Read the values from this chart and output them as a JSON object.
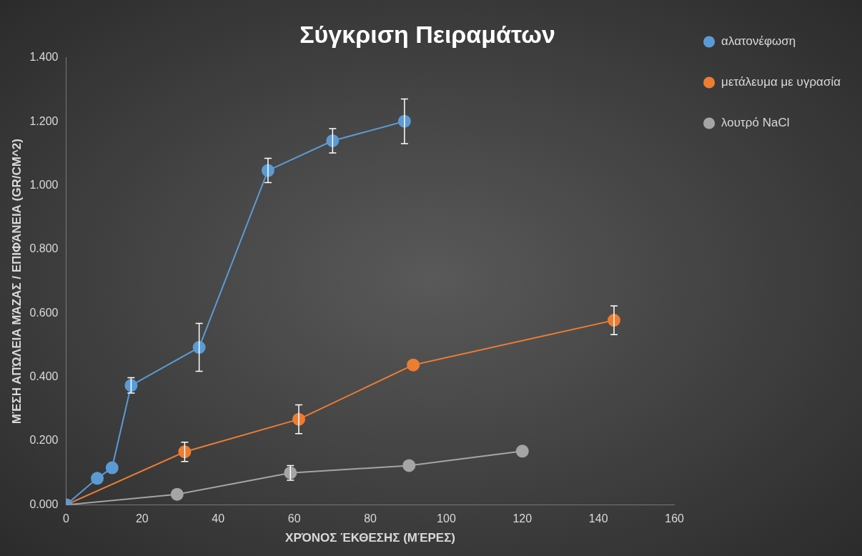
{
  "chart_data": {
    "type": "line",
    "title": "Σύγκριση Πειραμάτων",
    "xlabel": "ΧΡΌΝΟΣ ΈΚΘΕΣΗΣ (ΜΈΡΕΣ)",
    "ylabel": "ΜΈΣΗ ΑΠΏΛΕΙΑ ΜΆΖΑΣ / ΕΠΙΦΆΝΕΙΑ (GR/CM^2)",
    "xlim": [
      0,
      160
    ],
    "xticks": [
      0,
      20,
      40,
      60,
      80,
      100,
      120,
      140,
      160
    ],
    "ylim": [
      0,
      1.4
    ],
    "yticks": [
      {
        "value": 0,
        "label": "0.000"
      },
      {
        "value": 0.2,
        "label": "0.200"
      },
      {
        "value": 0.4,
        "label": "0.400"
      },
      {
        "value": 0.6,
        "label": "0.600"
      },
      {
        "value": 0.8,
        "label": "0.800"
      },
      {
        "value": 1,
        "label": "1.000"
      },
      {
        "value": 1.2,
        "label": "1.200"
      },
      {
        "value": 1.4,
        "label": "1.400"
      }
    ],
    "grid": false,
    "legend": "top right",
    "marker": "circle",
    "line_style": "solid",
    "series": [
      {
        "name": "αλατονέφωση",
        "color": "#5b9bd5",
        "x": [
          0,
          8.2,
          12.1,
          17.1,
          35,
          53.1,
          70.1,
          89
        ],
        "values": [
          0,
          0.083,
          0.116,
          0.374,
          0.493,
          1.047,
          1.14,
          1.201
        ],
        "errors": [
          null,
          null,
          null,
          0.024,
          0.075,
          0.038,
          0.038,
          0.07
        ]
      },
      {
        "name": "μετάλευμα με υγρασία",
        "color": "#ed7d31",
        "x": [
          0,
          31.2,
          61.2,
          91.3,
          144.1
        ],
        "values": [
          0,
          0.166,
          0.268,
          0.438,
          0.578
        ],
        "errors": [
          null,
          0.03,
          0.045,
          null,
          0.045
        ]
      },
      {
        "name": "λουτρό NaCl",
        "color": "#a5a5a5",
        "x": [
          0,
          29.2,
          59,
          90.2,
          120
        ],
        "values": [
          0,
          0.033,
          0.1,
          0.123,
          0.168
        ],
        "errors": [
          null,
          null,
          0.023,
          null,
          null
        ]
      }
    ]
  }
}
